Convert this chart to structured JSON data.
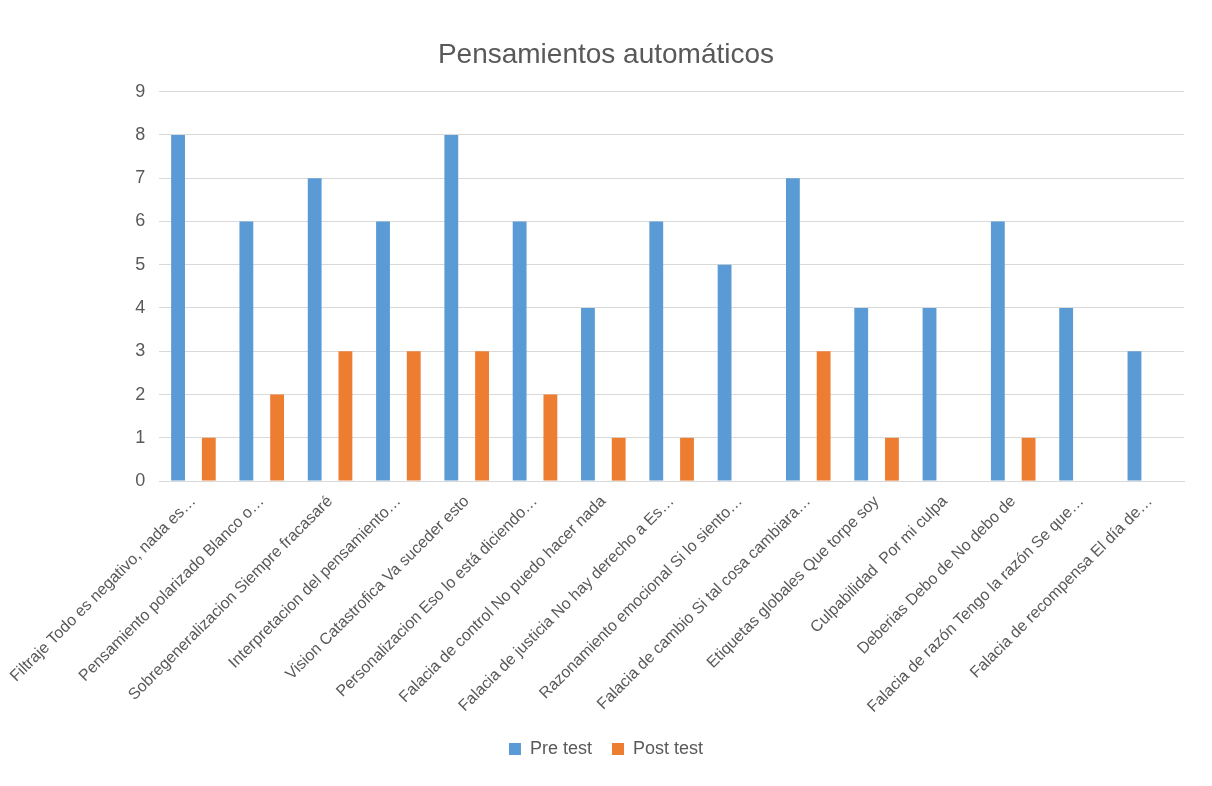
{
  "chart_data": {
    "type": "bar",
    "title": "Pensamientos automáticos",
    "categories": [
      "Filtraje Todo es negativo, nada es…",
      "Pensamiento polarizado Blanco o…",
      "Sobregeneralizacion Siempre fracasaré",
      "Interpretacion del pensamiento…",
      "Vision Catastrofica Va suceder esto",
      "Personalizacion Eso lo está diciendo…",
      "Falacia de control No puedo hacer nada",
      "Falacia de justicia No hay derecho a Es…",
      "Razonamiento emocional Si lo siento…",
      "Falacia de cambio Si tal cosa cambiara…",
      "Etiquetas globales Que torpe soy",
      "Culpabilidad  Por mi culpa",
      "Deberias Debo de No debo de",
      "Falacia de razón Tengo la razón Se que…",
      "Falacia de recompensa El día de…"
    ],
    "series": [
      {
        "name": "Pre test",
        "color": "#5b9bd5",
        "values": [
          8,
          6,
          7,
          6,
          8,
          6,
          4,
          6,
          5,
          7,
          4,
          4,
          6,
          4,
          3
        ]
      },
      {
        "name": "Post test",
        "color": "#ed7d31",
        "values": [
          1,
          2,
          3,
          3,
          3,
          2,
          1,
          1,
          0,
          3,
          1,
          0,
          1,
          0,
          0
        ]
      }
    ],
    "ylim": [
      0,
      9
    ],
    "yticks": [
      0,
      1,
      2,
      3,
      4,
      5,
      6,
      7,
      8,
      9
    ],
    "grid": "y",
    "legend": "bottom"
  }
}
